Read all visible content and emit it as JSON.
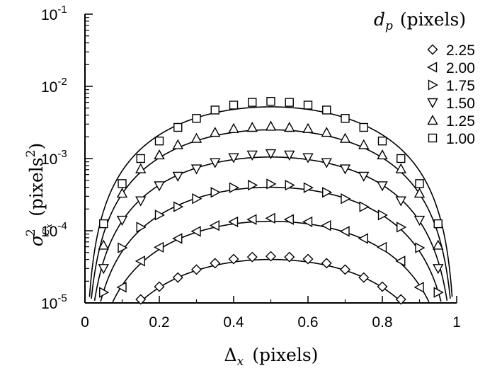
{
  "chart_data": {
    "type": "scatter",
    "x_scale": "linear",
    "y_scale": "log",
    "xlim": [
      0,
      1
    ],
    "ylim": [
      1e-05,
      0.1
    ],
    "x_ticks": [
      "0",
      "0.2",
      "0.4",
      "0.6",
      "0.8",
      "1"
    ],
    "y_ticks": [
      {
        "mantissa": "10",
        "exponent": "-5"
      },
      {
        "mantissa": "10",
        "exponent": "-4"
      },
      {
        "mantissa": "10",
        "exponent": "-3"
      },
      {
        "mantissa": "10",
        "exponent": "-2"
      },
      {
        "mantissa": "10",
        "exponent": "-1"
      }
    ],
    "xlabel": {
      "symbol": "Δ",
      "sub": "x",
      "units": "(pixels)"
    },
    "ylabel": {
      "symbol": "σ",
      "sup": "2",
      "sub": "ε",
      "subsub": "x",
      "units_pre": "(pixels",
      "units_sup": "2",
      "units_post": ")"
    },
    "legend": {
      "title_var": "d",
      "title_sub": "p",
      "title_units": "(pixels)",
      "placement": "top-right"
    },
    "x": [
      0.05,
      0.1,
      0.15,
      0.2,
      0.25,
      0.3,
      0.35,
      0.4,
      0.45,
      0.5,
      0.55,
      0.6,
      0.65,
      0.7,
      0.75,
      0.8,
      0.85,
      0.9,
      0.95
    ],
    "series": [
      {
        "name": "2.25",
        "marker": "diamond",
        "values": [
          null,
          null,
          1.12e-05,
          1.68e-05,
          2.25e-05,
          2.9e-05,
          3.55e-05,
          4.05e-05,
          4.32e-05,
          4.43e-05,
          4.32e-05,
          4.05e-05,
          3.55e-05,
          2.9e-05,
          2.25e-05,
          1.68e-05,
          1.12e-05,
          null,
          null
        ],
        "curve_peak": 4e-05
      },
      {
        "name": "2.00",
        "marker": "triangle-left",
        "values": [
          null,
          1.65e-05,
          3.8e-05,
          5.9e-05,
          7.8e-05,
          9.8e-05,
          0.000118,
          0.000133,
          0.000143,
          0.000149,
          0.000143,
          0.000133,
          0.000118,
          9.8e-05,
          7.8e-05,
          5.9e-05,
          3.8e-05,
          1.65e-05,
          null
        ],
        "curve_peak": 0.000135
      },
      {
        "name": "1.75",
        "marker": "triangle-right",
        "values": [
          1.4e-05,
          5.8e-05,
          0.000112,
          0.000165,
          0.000215,
          0.000278,
          0.00034,
          0.000395,
          0.000428,
          0.000445,
          0.000428,
          0.000395,
          0.00034,
          0.000278,
          0.000215,
          0.000165,
          0.000112,
          5.8e-05,
          1.4e-05
        ],
        "curve_peak": 0.0004
      },
      {
        "name": "1.50",
        "marker": "triangle-down",
        "values": [
          3e-05,
          0.00014,
          0.00026,
          0.00042,
          0.00057,
          0.00072,
          0.00088,
          0.00103,
          0.00112,
          0.00117,
          0.00112,
          0.00103,
          0.00088,
          0.00072,
          0.00057,
          0.00042,
          0.00026,
          0.00014,
          3e-05
        ],
        "curve_peak": 0.00105
      },
      {
        "name": "1.25",
        "marker": "triangle-up",
        "values": [
          6.3e-05,
          0.00033,
          0.00072,
          0.00112,
          0.00155,
          0.0019,
          0.0023,
          0.0026,
          0.0027,
          0.0028,
          0.0027,
          0.0026,
          0.0023,
          0.0019,
          0.00155,
          0.00112,
          0.00072,
          0.00033,
          6.3e-05
        ],
        "curve_peak": 0.0025
      },
      {
        "name": "1.00",
        "marker": "square",
        "values": [
          0.000125,
          0.00045,
          0.001,
          0.00175,
          0.0027,
          0.0036,
          0.0047,
          0.0055,
          0.006,
          0.0062,
          0.006,
          0.0055,
          0.0047,
          0.0036,
          0.0027,
          0.00175,
          0.001,
          0.00045,
          0.000125
        ],
        "curve_peak": 0.0052
      }
    ],
    "grid": false
  }
}
